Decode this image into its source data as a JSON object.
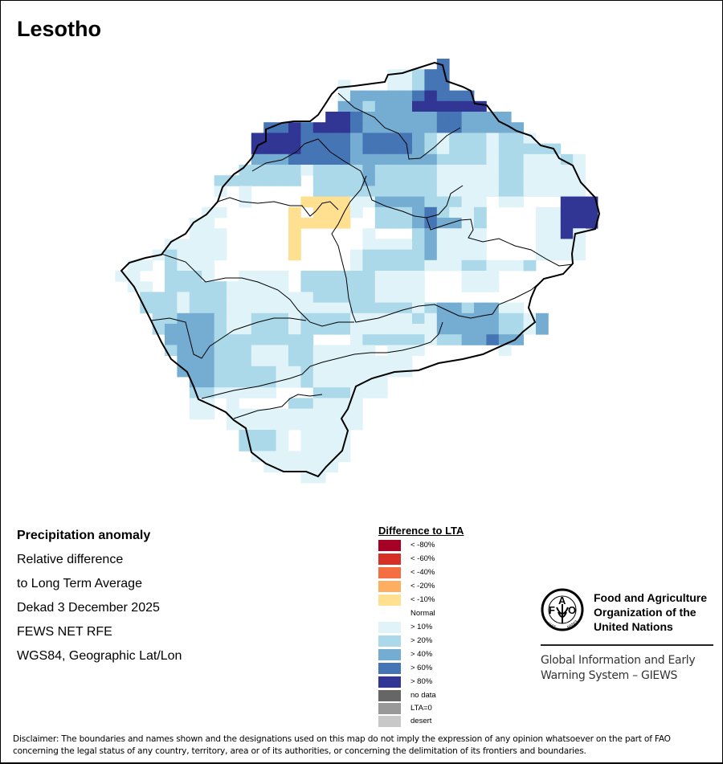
{
  "title": "Lesotho",
  "info": {
    "heading": "Precipitation anomaly",
    "line1": "Relative difference",
    "line2": "to Long Term Average",
    "period": "Dekad 3 December 2025",
    "source": "FEWS NET RFE",
    "projection": "WGS84, Geographic Lat/Lon"
  },
  "legend": {
    "title": "Difference to LTA",
    "items": [
      {
        "code": "r8",
        "label": "< -80%",
        "color": "#a50026"
      },
      {
        "code": "r6",
        "label": "< -60%",
        "color": "#d73027"
      },
      {
        "code": "r4",
        "label": "< -40%",
        "color": "#f46d43"
      },
      {
        "code": "r2",
        "label": "< -20%",
        "color": "#fdae61"
      },
      {
        "code": "y",
        "label": "< -10%",
        "color": "#fee090"
      },
      {
        "code": ".",
        "label": "Normal",
        "color": "#ffffff"
      },
      {
        "code": "1",
        "label": "> 10%",
        "color": "#e0f3f8"
      },
      {
        "code": "2",
        "label": "> 20%",
        "color": "#abd9e9"
      },
      {
        "code": "4",
        "label": "> 40%",
        "color": "#74add1"
      },
      {
        "code": "6",
        "label": "> 60%",
        "color": "#4575b4"
      },
      {
        "code": "8",
        "label": "> 80%",
        "color": "#313695"
      }
    ],
    "extra": [
      {
        "label": "no data",
        "color": "#666666"
      },
      {
        "label": "LTA=0",
        "color": "#999999"
      },
      {
        "label": "desert",
        "color": "#c8c8c8"
      }
    ]
  },
  "anomaly_grid": [
    "..........................6.............",
    "......................11266.............",
    "..................1...11266.............",
    "..................14444468666...........",
    "..................44244488888 8.........",
    ".................88644444466 4444........",
    "............668688864444446644444.......",
    "...........88886666466664212221221......",
    "...........8888666646666421222122222....",
    "...........444666664444444222212211121..",
    "..........22222122224222221111122 11111.",
    "........2222222.22224222221111122 11111.",
    "........1.1.....2222222222111112211111..",
    "..........1....yyyy114444222 11.11...888",
    ".......11.....y.yyy1.22246211 2....11888",
    "......11......yyyyy..2224644 12....11888",
    "......111.....y.....1...2411 11....1181.",
    "....11111.....y.....1111241111....1111..",
    "...121111.....y....1222224 1111....1111.",
    ".11.2111...........1222221112211 12.....",
    "11..2221..1111.22222211 11...111........",
    ".11.2222211111.2222221111...111.........",
    "..2221222111111122222 1111..............",
    "..222122211111111112222212442 4411......",
    "...2244421122212222111112144444 2214.....",
    "...2444421122212222111111144444 2214.....",
    "....444422222222...1222221224464 4......",
    "....24442221112211111.111......1........",
    ".....44422211122111111 11...............",
    ".....44422222112111111 11...............",
    "......4422222112111111..................",
    "......2211111...222111..................",
    "......11.1....221111....................",
    "......11.11111111111....................",
    ".........11111111111....................",
    "..........2221.1111.....................",
    "..........2221.1111.....................",
    "...........11111111.....................",
    "............111111......................",
    "...............11......................."
  ],
  "fao": {
    "logo_text": "FAO FIAT PANIS",
    "line1": "Food and Agriculture",
    "line2": "Organization of the",
    "line3": "United Nations",
    "giews1": "Global Information and Early",
    "giews2": "Warning System – GIEWS"
  },
  "disclaimer": "Disclaimer: The boundaries and names shown and the designations used on this map do not imply the expression of any opinion whatsoever on the part of FAO concerning the legal status of any country, territory, area or of its authorities, or concerning the delimitation of its frontiers and boundaries."
}
